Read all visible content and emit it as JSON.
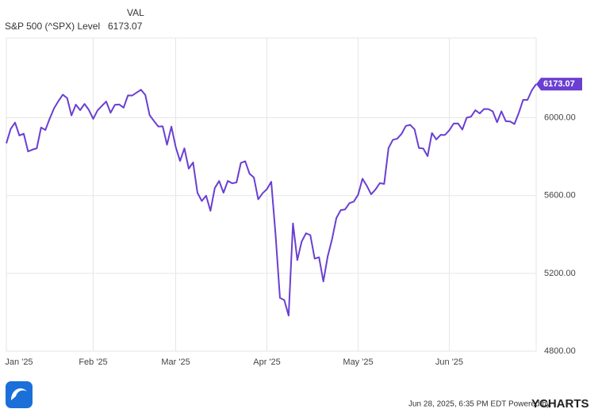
{
  "chart_data": {
    "type": "line",
    "legend": {
      "header": "VAL",
      "name": "S&P 500 (^SPX) Level",
      "value": "6173.07"
    },
    "badge_label": "6173.07",
    "footer": "Jun 28, 2025, 6:35 PM EDT Powered by",
    "brand": "YCHARTS",
    "categories": [
      "Jan '25",
      null,
      null,
      null,
      null,
      null,
      null,
      null,
      null,
      null,
      null,
      null,
      null,
      null,
      null,
      null,
      null,
      null,
      null,
      null,
      "Feb '25",
      null,
      null,
      null,
      null,
      null,
      null,
      null,
      null,
      null,
      null,
      null,
      null,
      null,
      null,
      null,
      null,
      null,
      null,
      "Mar '25",
      null,
      null,
      null,
      null,
      null,
      null,
      null,
      null,
      null,
      null,
      null,
      null,
      null,
      null,
      null,
      null,
      null,
      null,
      null,
      null,
      "Apr '25",
      null,
      null,
      null,
      null,
      null,
      null,
      null,
      null,
      null,
      null,
      null,
      null,
      null,
      null,
      null,
      null,
      null,
      null,
      null,
      null,
      "May '25",
      null,
      null,
      null,
      null,
      null,
      null,
      null,
      null,
      null,
      null,
      null,
      null,
      null,
      null,
      null,
      null,
      null,
      null,
      null,
      null,
      "Jun '25",
      null,
      null,
      null,
      null,
      null,
      null,
      null,
      null,
      null,
      null,
      null,
      null,
      null,
      null,
      null,
      null,
      null,
      null,
      null,
      null
    ],
    "series": [
      {
        "name": "S&P 500 (^SPX) Level",
        "color": "#6a3fd1",
        "values": [
          5868.55,
          5942.47,
          5975.38,
          5909.03,
          5918.25,
          5827.04,
          5836.22,
          5842.91,
          5949.91,
          5937.34,
          5996.66,
          6049.24,
          6086.37,
          6118.71,
          6101.24,
          6012.28,
          6067.7,
          6039.31,
          6071.17,
          6040.53,
          5994.57,
          6037.88,
          6061.48,
          6083.57,
          6025.99,
          6066.44,
          6068.5,
          6051.97,
          6115.07,
          6114.63,
          6129.58,
          6144.15,
          6117.52,
          6013.13,
          5983.25,
          5955.25,
          5956.06,
          5861.57,
          5954.5,
          5849.72,
          5778.15,
          5842.63,
          5738.52,
          5770.2,
          5614.56,
          5572.07,
          5599.3,
          5521.52,
          5638.94,
          5675.12,
          5614.66,
          5675.29,
          5662.89,
          5667.56,
          5767.57,
          5776.65,
          5712.2,
          5693.31,
          5580.94,
          5611.85,
          5633.07,
          5670.97,
          5396.52,
          5074.08,
          5062.25,
          4982.77,
          5456.9,
          5268.05,
          5363.36,
          5405.97,
          5396.63,
          5275.7,
          5282.7,
          5158.2,
          5287.76,
          5375.86,
          5484.77,
          5525.21,
          5528.75,
          5560.83,
          5569.06,
          5604.14,
          5686.67,
          5650.38,
          5606.91,
          5631.28,
          5663.94,
          5659.91,
          5844.19,
          5886.55,
          5892.58,
          5916.93,
          5958.38,
          5963.6,
          5940.46,
          5844.61,
          5842.01,
          5802.82,
          5921.54,
          5888.55,
          5912.17,
          5911.69,
          5935.94,
          5970.37,
          5970.81,
          5939.3,
          6000.36,
          6005.88,
          6038.81,
          6022.24,
          6045.26,
          6044.63,
          6033.11,
          5976.97,
          6033.11,
          5982.72,
          5980.87,
          5967.84,
          6025.17,
          6092.18,
          6092.16,
          6141.02,
          6173.07
        ]
      }
    ],
    "ylim": [
      4800,
      6410
    ],
    "yticks": [
      {
        "value": 4800,
        "label": "4800.00"
      },
      {
        "value": 5200,
        "label": "5200.00"
      },
      {
        "value": 5600,
        "label": "5600.00"
      },
      {
        "value": 6000,
        "label": "6000.00"
      }
    ],
    "grid": true
  }
}
